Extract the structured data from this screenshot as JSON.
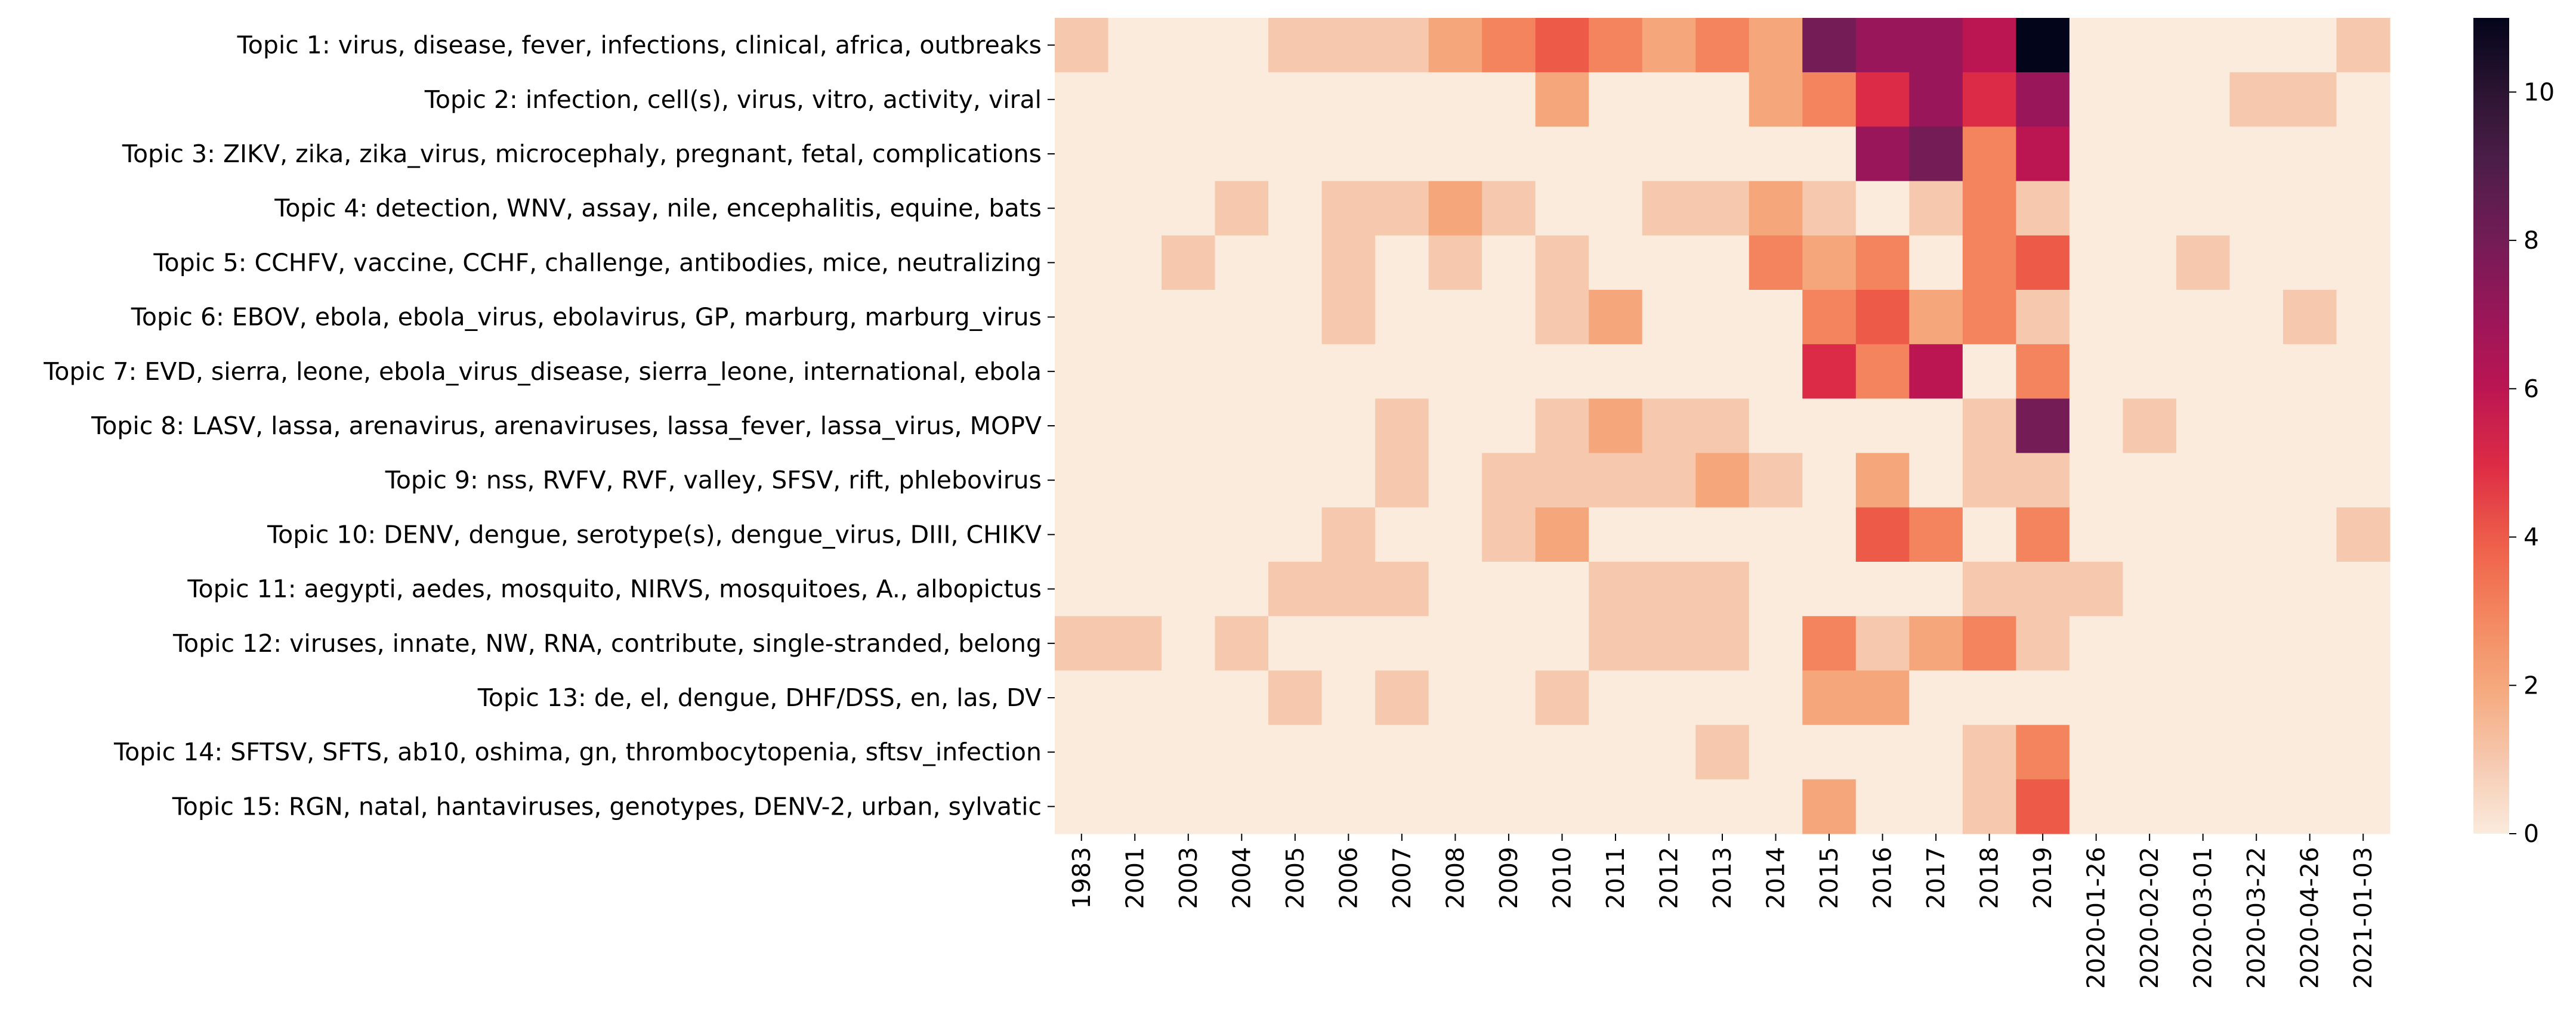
{
  "chart_data": {
    "type": "heatmap",
    "title": "",
    "xlabel": "",
    "ylabel": "",
    "grid": false,
    "columns": [
      "1983",
      "2001",
      "2003",
      "2004",
      "2005",
      "2006",
      "2007",
      "2008",
      "2009",
      "2010",
      "2011",
      "2012",
      "2013",
      "2014",
      "2015",
      "2016",
      "2017",
      "2018",
      "2019",
      "2020-01-26",
      "2020-02-02",
      "2020-03-01",
      "2020-03-22",
      "2020-04-26",
      "2021-01-03"
    ],
    "rows": [
      "Topic 1: virus, disease, fever, infections, clinical, africa, outbreaks",
      "Topic 2: infection, cell(s), virus, vitro, activity, viral",
      "Topic 3: ZIKV, zika, zika_virus, microcephaly, pregnant, fetal, complications",
      "Topic 4: detection, WNV, assay, nile, encephalitis, equine, bats",
      "Topic 5: CCHFV, vaccine, CCHF, challenge, antibodies, mice, neutralizing",
      "Topic 6: EBOV, ebola, ebola_virus, ebolavirus, GP, marburg, marburg_virus",
      "Topic 7: EVD, sierra, leone, ebola_virus_disease, sierra_leone, international, ebola",
      "Topic 8: LASV, lassa, arenavirus, arenaviruses, lassa_fever, lassa_virus, MOPV",
      "Topic 9: nss, RVFV, RVF, valley, SFSV, rift, phlebovirus",
      "Topic 10: DENV, dengue, serotype(s), dengue_virus, DIII, CHIKV",
      "Topic 11: aegypti, aedes, mosquito, NIRVS, mosquitoes, A., albopictus",
      "Topic 12: viruses, innate, NW, RNA, contribute, single-stranded, belong",
      "Topic 13: de, el, dengue, DHF/DSS, en, las, DV",
      "Topic 14: SFTSV, SFTS, ab10, oshima, gn, thrombocytopenia, sftsv_infection",
      "Topic 15: RGN, natal, hantaviruses, genotypes, DENV-2, urban, sylvatic"
    ],
    "values": [
      [
        1,
        0,
        0,
        0,
        1,
        1,
        1,
        2,
        3,
        4,
        3,
        2,
        3,
        2,
        8,
        7,
        7,
        6,
        11,
        0,
        0,
        0,
        0,
        0,
        1
      ],
      [
        0,
        0,
        0,
        0,
        0,
        0,
        0,
        0,
        0,
        2,
        0,
        0,
        0,
        2,
        3,
        5,
        7,
        5,
        7,
        0,
        0,
        0,
        1,
        1,
        0
      ],
      [
        0,
        0,
        0,
        0,
        0,
        0,
        0,
        0,
        0,
        0,
        0,
        0,
        0,
        0,
        0,
        7,
        8,
        3,
        6,
        0,
        0,
        0,
        0,
        0,
        0
      ],
      [
        0,
        0,
        0,
        1,
        0,
        1,
        1,
        2,
        1,
        0,
        0,
        1,
        1,
        2,
        1,
        0,
        1,
        3,
        1,
        0,
        0,
        0,
        0,
        0,
        0
      ],
      [
        0,
        0,
        1,
        0,
        0,
        1,
        0,
        1,
        0,
        1,
        0,
        0,
        0,
        3,
        2,
        3,
        0,
        3,
        4,
        0,
        0,
        1,
        0,
        0,
        0
      ],
      [
        0,
        0,
        0,
        0,
        0,
        1,
        0,
        0,
        0,
        1,
        2,
        0,
        0,
        0,
        3,
        4,
        2,
        3,
        1,
        0,
        0,
        0,
        0,
        1,
        0
      ],
      [
        0,
        0,
        0,
        0,
        0,
        0,
        0,
        0,
        0,
        0,
        0,
        0,
        0,
        0,
        5,
        3,
        6,
        0,
        3,
        0,
        0,
        0,
        0,
        0,
        0
      ],
      [
        0,
        0,
        0,
        0,
        0,
        0,
        1,
        0,
        0,
        1,
        2,
        1,
        1,
        0,
        0,
        0,
        0,
        1,
        8,
        0,
        1,
        0,
        0,
        0,
        0
      ],
      [
        0,
        0,
        0,
        0,
        0,
        0,
        1,
        0,
        1,
        1,
        1,
        1,
        2,
        1,
        0,
        2,
        0,
        1,
        1,
        0,
        0,
        0,
        0,
        0,
        0
      ],
      [
        0,
        0,
        0,
        0,
        0,
        1,
        0,
        0,
        1,
        2,
        0,
        0,
        0,
        0,
        0,
        4,
        3,
        0,
        3,
        0,
        0,
        0,
        0,
        0,
        1
      ],
      [
        0,
        0,
        0,
        0,
        1,
        1,
        1,
        0,
        0,
        0,
        1,
        1,
        1,
        0,
        0,
        0,
        0,
        1,
        1,
        1,
        0,
        0,
        0,
        0,
        0
      ],
      [
        1,
        1,
        0,
        1,
        0,
        0,
        0,
        0,
        0,
        0,
        1,
        1,
        1,
        0,
        3,
        1,
        2,
        3,
        1,
        0,
        0,
        0,
        0,
        0,
        0
      ],
      [
        0,
        0,
        0,
        0,
        1,
        0,
        1,
        0,
        0,
        1,
        0,
        0,
        0,
        0,
        2,
        2,
        0,
        0,
        0,
        0,
        0,
        0,
        0,
        0,
        0
      ],
      [
        0,
        0,
        0,
        0,
        0,
        0,
        0,
        0,
        0,
        0,
        0,
        0,
        1,
        0,
        0,
        0,
        0,
        1,
        3,
        0,
        0,
        0,
        0,
        0,
        0
      ],
      [
        0,
        0,
        0,
        0,
        0,
        0,
        0,
        0,
        0,
        0,
        0,
        0,
        0,
        0,
        2,
        0,
        0,
        1,
        4,
        0,
        0,
        0,
        0,
        0,
        0
      ]
    ],
    "colorbar": {
      "range": [
        0,
        11
      ],
      "ticks": [
        "0",
        "2",
        "4",
        "6",
        "8",
        "10"
      ],
      "colorscale": "rocket_r"
    }
  }
}
